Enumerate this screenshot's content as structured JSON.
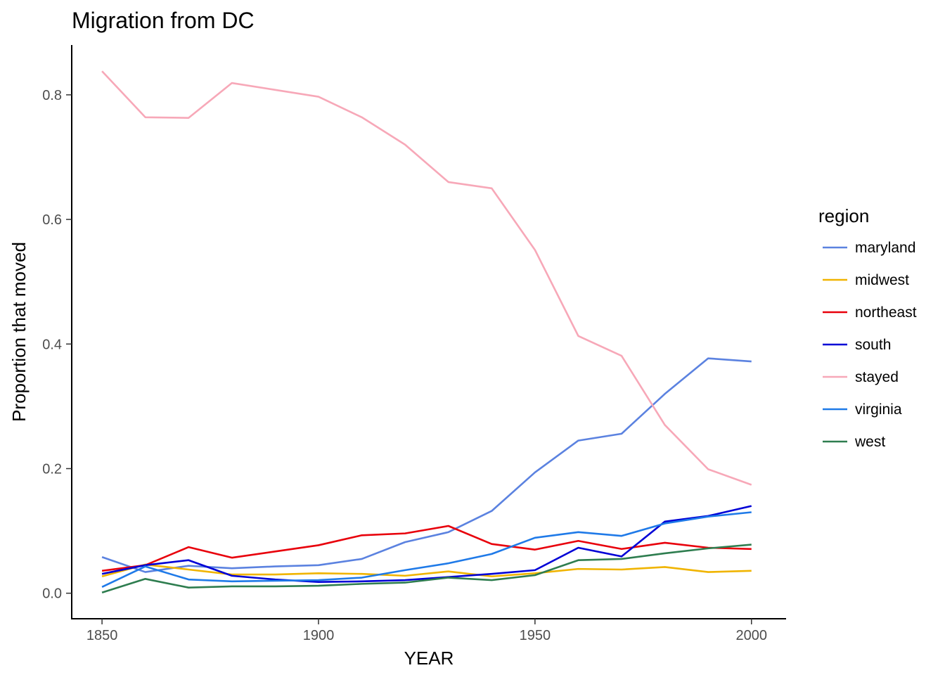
{
  "chart_data": {
    "type": "line",
    "title": "Migration from DC",
    "xlabel": "YEAR",
    "ylabel": "Proportion that moved",
    "xlim": [
      1843,
      2008
    ],
    "ylim": [
      -0.041,
      0.88
    ],
    "x_ticks": [
      {
        "value": 1850,
        "label": "1850"
      },
      {
        "value": 1900,
        "label": "1900"
      },
      {
        "value": 1950,
        "label": "1950"
      },
      {
        "value": 2000,
        "label": "2000"
      }
    ],
    "y_ticks": [
      {
        "value": 0.0,
        "label": "0.0"
      },
      {
        "value": 0.2,
        "label": "0.2"
      },
      {
        "value": 0.4,
        "label": "0.4"
      },
      {
        "value": 0.6,
        "label": "0.6"
      },
      {
        "value": 0.8,
        "label": "0.8"
      }
    ],
    "grid": false,
    "legend": {
      "title": "region",
      "placement": "right"
    },
    "x": [
      1850,
      1860,
      1870,
      1880,
      1890,
      1900,
      1910,
      1920,
      1930,
      1940,
      1950,
      1960,
      1970,
      1980,
      1990,
      2000
    ],
    "series": [
      {
        "name": "maryland",
        "color": "#5b82e0",
        "values": [
          0.058,
          0.034,
          0.044,
          0.04,
          0.043,
          0.045,
          0.055,
          0.082,
          0.098,
          0.132,
          0.194,
          0.245,
          0.256,
          0.32,
          0.377,
          0.372
        ]
      },
      {
        "name": "midwest",
        "color": "#f0b400",
        "values": [
          0.027,
          0.046,
          0.038,
          0.03,
          0.03,
          0.032,
          0.031,
          0.028,
          0.035,
          0.027,
          0.032,
          0.039,
          0.038,
          0.042,
          0.034,
          0.036
        ]
      },
      {
        "name": "northeast",
        "color": "#e8000b",
        "values": [
          0.036,
          0.045,
          0.074,
          0.057,
          0.067,
          0.077,
          0.093,
          0.096,
          0.108,
          0.079,
          0.07,
          0.084,
          0.071,
          0.081,
          0.073,
          0.071
        ]
      },
      {
        "name": "south",
        "color": "#0000d6",
        "values": [
          0.031,
          0.045,
          0.053,
          0.028,
          0.022,
          0.018,
          0.019,
          0.021,
          0.026,
          0.031,
          0.037,
          0.073,
          0.059,
          0.115,
          0.124,
          0.14
        ]
      },
      {
        "name": "stayed",
        "color": "#f7a8b8",
        "values": [
          0.838,
          0.764,
          0.763,
          0.819,
          0.808,
          0.797,
          0.764,
          0.72,
          0.66,
          0.65,
          0.551,
          0.413,
          0.381,
          0.27,
          0.199,
          0.174
        ]
      },
      {
        "name": "virginia",
        "color": "#1f7ae8",
        "values": [
          0.01,
          0.043,
          0.022,
          0.019,
          0.02,
          0.021,
          0.025,
          0.037,
          0.048,
          0.063,
          0.089,
          0.098,
          0.092,
          0.112,
          0.123,
          0.13
        ]
      },
      {
        "name": "west",
        "color": "#2e7d4f",
        "values": [
          0.001,
          0.023,
          0.009,
          0.011,
          0.011,
          0.012,
          0.015,
          0.017,
          0.025,
          0.021,
          0.029,
          0.053,
          0.055,
          0.064,
          0.072,
          0.078
        ]
      }
    ]
  }
}
